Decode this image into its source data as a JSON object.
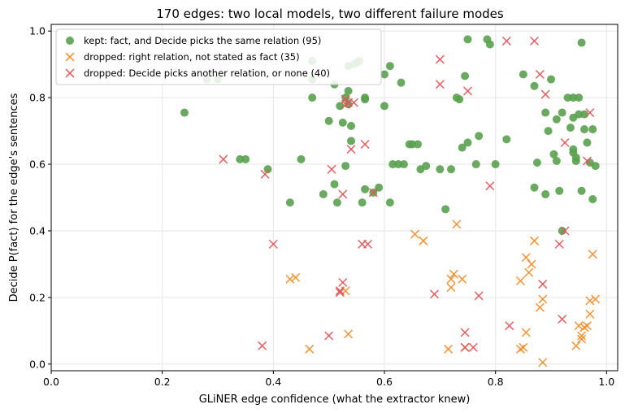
{
  "chart_data": {
    "type": "scatter",
    "title": "170 edges: two local models, two different failure modes",
    "xlabel": "GLiNER edge confidence  (what the extractor knew)",
    "ylabel": "Decide P(fact) for the edge's sentences",
    "xlim": [
      0.0,
      1.02
    ],
    "ylim": [
      -0.02,
      1.02
    ],
    "xticks": [
      "0.0",
      "0.2",
      "0.4",
      "0.6",
      "0.8",
      "1.0"
    ],
    "yticks": [
      "0.0",
      "0.2",
      "0.4",
      "0.6",
      "0.8",
      "1.0"
    ],
    "grid": true,
    "legend_position": "top-left",
    "series": [
      {
        "name": "kept: fact, and Decide picks the same relation (95)",
        "marker": "circle",
        "color": "#59a14f",
        "points": [
          [
            0.24,
            0.755
          ],
          [
            0.28,
            0.855
          ],
          [
            0.3,
            0.855
          ],
          [
            0.34,
            0.615
          ],
          [
            0.35,
            0.615
          ],
          [
            0.39,
            0.585
          ],
          [
            0.43,
            0.485
          ],
          [
            0.45,
            0.615
          ],
          [
            0.47,
            0.91
          ],
          [
            0.47,
            0.855
          ],
          [
            0.47,
            0.8
          ],
          [
            0.49,
            0.51
          ],
          [
            0.5,
            0.73
          ],
          [
            0.51,
            0.84
          ],
          [
            0.51,
            0.54
          ],
          [
            0.515,
            0.485
          ],
          [
            0.52,
            0.775
          ],
          [
            0.525,
            0.725
          ],
          [
            0.53,
            0.8
          ],
          [
            0.53,
            0.595
          ],
          [
            0.535,
            0.82
          ],
          [
            0.535,
            0.78
          ],
          [
            0.535,
            0.895
          ],
          [
            0.54,
            0.715
          ],
          [
            0.54,
            0.67
          ],
          [
            0.545,
            0.9
          ],
          [
            0.55,
            0.905
          ],
          [
            0.555,
            0.91
          ],
          [
            0.56,
            0.485
          ],
          [
            0.565,
            0.525
          ],
          [
            0.565,
            0.8
          ],
          [
            0.565,
            0.795
          ],
          [
            0.58,
            0.515
          ],
          [
            0.59,
            0.53
          ],
          [
            0.6,
            0.775
          ],
          [
            0.6,
            0.87
          ],
          [
            0.61,
            0.895
          ],
          [
            0.61,
            0.485
          ],
          [
            0.615,
            0.6
          ],
          [
            0.63,
            0.845
          ],
          [
            0.635,
            0.6
          ],
          [
            0.645,
            0.66
          ],
          [
            0.65,
            0.66
          ],
          [
            0.66,
            0.66
          ],
          [
            0.665,
            0.585
          ],
          [
            0.675,
            0.595
          ],
          [
            0.7,
            0.585
          ],
          [
            0.71,
            0.465
          ],
          [
            0.72,
            0.585
          ],
          [
            0.73,
            0.8
          ],
          [
            0.735,
            0.795
          ],
          [
            0.74,
            0.65
          ],
          [
            0.745,
            0.865
          ],
          [
            0.75,
            0.975
          ],
          [
            0.75,
            0.665
          ],
          [
            0.765,
            0.6
          ],
          [
            0.77,
            0.685
          ],
          [
            0.785,
            0.975
          ],
          [
            0.79,
            0.96
          ],
          [
            0.82,
            0.675
          ],
          [
            0.85,
            0.87
          ],
          [
            0.87,
            0.835
          ],
          [
            0.87,
            0.53
          ],
          [
            0.875,
            0.605
          ],
          [
            0.89,
            0.755
          ],
          [
            0.89,
            0.51
          ],
          [
            0.895,
            0.7
          ],
          [
            0.9,
            0.855
          ],
          [
            0.91,
            0.735
          ],
          [
            0.915,
            0.52
          ],
          [
            0.92,
            0.4
          ],
          [
            0.92,
            0.755
          ],
          [
            0.93,
            0.8
          ],
          [
            0.935,
            0.71
          ],
          [
            0.94,
            0.8
          ],
          [
            0.94,
            0.635
          ],
          [
            0.94,
            0.645
          ],
          [
            0.945,
            0.62
          ],
          [
            0.945,
            0.61
          ],
          [
            0.95,
            0.75
          ],
          [
            0.955,
            0.965
          ],
          [
            0.955,
            0.52
          ],
          [
            0.96,
            0.75
          ],
          [
            0.96,
            0.705
          ],
          [
            0.965,
            0.665
          ],
          [
            0.97,
            0.605
          ],
          [
            0.975,
            0.495
          ],
          [
            0.975,
            0.705
          ],
          [
            0.98,
            0.595
          ],
          [
            0.95,
            0.8
          ],
          [
            0.94,
            0.74
          ],
          [
            0.905,
            0.63
          ],
          [
            0.91,
            0.61
          ],
          [
            0.8,
            0.6
          ],
          [
            0.625,
            0.6
          ]
        ]
      },
      {
        "name": "dropped: right relation, not stated as fact (35)",
        "marker": "x",
        "color": "#f28e2b",
        "points": [
          [
            0.43,
            0.255
          ],
          [
            0.44,
            0.26
          ],
          [
            0.465,
            0.045
          ],
          [
            0.53,
            0.22
          ],
          [
            0.535,
            0.09
          ],
          [
            0.655,
            0.39
          ],
          [
            0.67,
            0.37
          ],
          [
            0.715,
            0.045
          ],
          [
            0.72,
            0.23
          ],
          [
            0.72,
            0.255
          ],
          [
            0.725,
            0.27
          ],
          [
            0.73,
            0.42
          ],
          [
            0.74,
            0.255
          ],
          [
            0.745,
            0.05
          ],
          [
            0.845,
            0.25
          ],
          [
            0.845,
            0.045
          ],
          [
            0.85,
            0.05
          ],
          [
            0.855,
            0.32
          ],
          [
            0.855,
            0.095
          ],
          [
            0.86,
            0.275
          ],
          [
            0.865,
            0.3
          ],
          [
            0.87,
            0.37
          ],
          [
            0.88,
            0.17
          ],
          [
            0.885,
            0.005
          ],
          [
            0.885,
            0.195
          ],
          [
            0.945,
            0.055
          ],
          [
            0.95,
            0.115
          ],
          [
            0.955,
            0.075
          ],
          [
            0.96,
            0.11
          ],
          [
            0.965,
            0.115
          ],
          [
            0.97,
            0.15
          ],
          [
            0.97,
            0.19
          ],
          [
            0.975,
            0.33
          ],
          [
            0.98,
            0.195
          ],
          [
            0.955,
            0.085
          ]
        ]
      },
      {
        "name": "dropped: Decide picks another relation, or none (40)",
        "marker": "x",
        "color": "#e15759",
        "points": [
          [
            0.31,
            0.615
          ],
          [
            0.38,
            0.055
          ],
          [
            0.385,
            0.57
          ],
          [
            0.4,
            0.36
          ],
          [
            0.5,
            0.085
          ],
          [
            0.505,
            0.585
          ],
          [
            0.52,
            0.22
          ],
          [
            0.525,
            0.51
          ],
          [
            0.525,
            0.245
          ],
          [
            0.53,
            0.78
          ],
          [
            0.53,
            0.795
          ],
          [
            0.535,
            0.785
          ],
          [
            0.54,
            0.645
          ],
          [
            0.545,
            0.785
          ],
          [
            0.56,
            0.36
          ],
          [
            0.565,
            0.66
          ],
          [
            0.57,
            0.36
          ],
          [
            0.58,
            0.515
          ],
          [
            0.69,
            0.21
          ],
          [
            0.7,
            0.915
          ],
          [
            0.7,
            0.84
          ],
          [
            0.745,
            0.05
          ],
          [
            0.745,
            0.095
          ],
          [
            0.75,
            0.82
          ],
          [
            0.76,
            0.05
          ],
          [
            0.77,
            0.205
          ],
          [
            0.79,
            0.535
          ],
          [
            0.82,
            0.97
          ],
          [
            0.825,
            0.115
          ],
          [
            0.87,
            0.97
          ],
          [
            0.88,
            0.87
          ],
          [
            0.885,
            0.24
          ],
          [
            0.89,
            0.81
          ],
          [
            0.915,
            0.36
          ],
          [
            0.925,
            0.665
          ],
          [
            0.925,
            0.4
          ],
          [
            0.965,
            0.61
          ],
          [
            0.97,
            0.755
          ],
          [
            0.92,
            0.135
          ],
          [
            0.52,
            0.215
          ]
        ]
      }
    ]
  }
}
